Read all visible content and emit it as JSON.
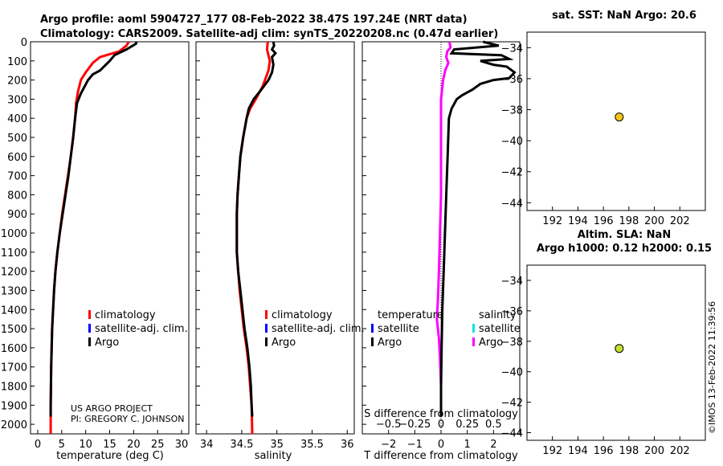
{
  "title_line1": "Argo profile: aoml 5904727_177 08-Feb-2022 38.47S 197.24E (NRT data)",
  "title_line2": "Climatology: CARS2009. Satellite-adj clim: synTS_20220208.nc (0.47d earlier)",
  "map1_title": "sat. SST: NaN Argo: 20.6",
  "map2_title_line1": "Altim. SLA: NaN",
  "map2_title_line2": "Argo h1000: 0.12 h2000: 0.15",
  "credit_us": "US ARGO PROJECT",
  "credit_pi": "PI: GREGORY C. JOHNSON",
  "stamp": "©IMOS 13-Feb-2022 11:39:56",
  "colors": {
    "climatology": "#ff0000",
    "satellite": "#0000ff",
    "argo": "#000000",
    "sat_diff": "#00e5e5",
    "argo_s_diff": "#ff00ff",
    "marker1": "#f5c518",
    "marker2": "#c8e030"
  },
  "chart_data": [
    {
      "type": "line",
      "name": "temperature",
      "xlabel": "temperature (deg C)",
      "ylabel": "",
      "xlim": [
        -1.5,
        31.5
      ],
      "ylim": [
        0,
        2050
      ],
      "x_ticks": [
        0,
        5,
        10,
        15,
        20,
        25,
        30
      ],
      "y_ticks": [
        0,
        100,
        200,
        300,
        400,
        500,
        600,
        700,
        800,
        900,
        1000,
        1100,
        1200,
        1300,
        1400,
        1500,
        1600,
        1700,
        1800,
        1900,
        2000
      ],
      "legend": [
        "climatology",
        "satellite-adj. clim.",
        "Argo"
      ],
      "series": [
        {
          "name": "climatology",
          "points": [
            [
              19,
              0
            ],
            [
              18.5,
              20
            ],
            [
              17,
              50
            ],
            [
              13,
              80
            ],
            [
              11.5,
              110
            ],
            [
              10,
              160
            ],
            [
              9,
              200
            ],
            [
              8.4,
              260
            ],
            [
              8,
              320
            ],
            [
              7.8,
              400
            ],
            [
              7.4,
              500
            ],
            [
              6.9,
              600
            ],
            [
              6.3,
              700
            ],
            [
              5.7,
              800
            ],
            [
              5.1,
              900
            ],
            [
              4.6,
              1000
            ],
            [
              4.1,
              1100
            ],
            [
              3.7,
              1200
            ],
            [
              3.4,
              1300
            ],
            [
              3.2,
              1400
            ],
            [
              3,
              1500
            ],
            [
              2.9,
              1600
            ],
            [
              2.8,
              1700
            ],
            [
              2.75,
              1800
            ],
            [
              2.7,
              1900
            ],
            [
              2.7,
              2050
            ]
          ]
        },
        {
          "name": "Argo",
          "points": [
            [
              20.6,
              0
            ],
            [
              20.5,
              10
            ],
            [
              18.5,
              40
            ],
            [
              16,
              70
            ],
            [
              15,
              100
            ],
            [
              13,
              150
            ],
            [
              11.5,
              170
            ],
            [
              10.5,
              200
            ],
            [
              9,
              270
            ],
            [
              8.2,
              320
            ],
            [
              7.8,
              400
            ],
            [
              7.4,
              500
            ],
            [
              6.9,
              600
            ],
            [
              6.4,
              700
            ],
            [
              5.8,
              800
            ],
            [
              5.2,
              900
            ],
            [
              4.6,
              1000
            ],
            [
              4.1,
              1100
            ],
            [
              3.7,
              1200
            ],
            [
              3.4,
              1300
            ],
            [
              3.2,
              1400
            ],
            [
              3,
              1500
            ],
            [
              2.9,
              1600
            ],
            [
              2.8,
              1700
            ],
            [
              2.75,
              1800
            ],
            [
              2.7,
              1900
            ],
            [
              2.7,
              1960
            ]
          ]
        }
      ]
    },
    {
      "type": "line",
      "name": "salinity",
      "xlabel": "salinity",
      "ylabel": "",
      "xlim": [
        33.85,
        36.1
      ],
      "ylim": [
        0,
        2050
      ],
      "x_ticks": [
        34,
        34.5,
        35,
        35.5,
        36
      ],
      "legend": [
        "climatology",
        "satellite-adj. clim.",
        "Argo"
      ],
      "series": [
        {
          "name": "climatology",
          "points": [
            [
              34.87,
              0
            ],
            [
              34.86,
              40
            ],
            [
              34.9,
              100
            ],
            [
              34.88,
              150
            ],
            [
              34.8,
              230
            ],
            [
              34.7,
              300
            ],
            [
              34.62,
              350
            ],
            [
              34.57,
              400
            ],
            [
              34.52,
              500
            ],
            [
              34.48,
              600
            ],
            [
              34.46,
              700
            ],
            [
              34.44,
              800
            ],
            [
              34.43,
              900
            ],
            [
              34.43,
              1000
            ],
            [
              34.43,
              1100
            ],
            [
              34.45,
              1200
            ],
            [
              34.47,
              1300
            ],
            [
              34.5,
              1400
            ],
            [
              34.53,
              1500
            ],
            [
              34.57,
              1600
            ],
            [
              34.6,
              1700
            ],
            [
              34.62,
              1800
            ],
            [
              34.64,
              1900
            ],
            [
              34.65,
              2050
            ]
          ]
        },
        {
          "name": "Argo",
          "points": [
            [
              34.95,
              0
            ],
            [
              34.96,
              20
            ],
            [
              34.93,
              40
            ],
            [
              34.98,
              60
            ],
            [
              34.93,
              80
            ],
            [
              34.95,
              120
            ],
            [
              34.93,
              160
            ],
            [
              34.88,
              200
            ],
            [
              34.78,
              250
            ],
            [
              34.67,
              300
            ],
            [
              34.6,
              350
            ],
            [
              34.57,
              400
            ],
            [
              34.52,
              500
            ],
            [
              34.48,
              600
            ],
            [
              34.46,
              700
            ],
            [
              34.44,
              800
            ],
            [
              34.43,
              900
            ],
            [
              34.43,
              1000
            ],
            [
              34.43,
              1100
            ],
            [
              34.45,
              1200
            ],
            [
              34.48,
              1300
            ],
            [
              34.51,
              1400
            ],
            [
              34.54,
              1500
            ],
            [
              34.58,
              1600
            ],
            [
              34.61,
              1700
            ],
            [
              34.63,
              1800
            ],
            [
              34.64,
              1900
            ],
            [
              34.65,
              1960
            ]
          ]
        }
      ]
    },
    {
      "type": "line",
      "name": "difference",
      "xlabel": "T difference from climatology",
      "x2label": "S difference from climatology",
      "xlim": [
        -3,
        3
      ],
      "ylim": [
        0,
        2050
      ],
      "x_ticks": [
        -2,
        -1,
        0,
        1,
        2
      ],
      "x2_ticks": [
        -0.5,
        -0.25,
        0,
        0.25,
        0.5
      ],
      "legend_t_header": "temperature",
      "legend_s_header": "salinity",
      "legend_t": [
        "satellite",
        "Argo"
      ],
      "legend_s": [
        "satellite",
        "Argo"
      ],
      "series": [
        {
          "name": "T diff Argo",
          "points": [
            [
              1.6,
              0
            ],
            [
              2.2,
              20
            ],
            [
              0.5,
              40
            ],
            [
              0.4,
              60
            ],
            [
              2.3,
              70
            ],
            [
              2.6,
              90
            ],
            [
              1.5,
              100
            ],
            [
              2.0,
              120
            ],
            [
              2.5,
              130
            ],
            [
              2.8,
              160
            ],
            [
              2.6,
              190
            ],
            [
              2.0,
              200
            ],
            [
              1.5,
              220
            ],
            [
              1.2,
              250
            ],
            [
              0.8,
              280
            ],
            [
              0.6,
              300
            ],
            [
              0.4,
              350
            ],
            [
              0.3,
              400
            ],
            [
              0.25,
              600
            ],
            [
              0.2,
              800
            ],
            [
              0.15,
              1000
            ],
            [
              0.1,
              1200
            ],
            [
              0.05,
              1400
            ],
            [
              0.02,
              1600
            ],
            [
              0,
              1800
            ],
            [
              0,
              1960
            ]
          ]
        },
        {
          "name": "S diff Argo",
          "points": [
            [
              0.08,
              0
            ],
            [
              0.09,
              30
            ],
            [
              0.06,
              50
            ],
            [
              0.05,
              80
            ],
            [
              0.07,
              110
            ],
            [
              0.04,
              150
            ],
            [
              0.02,
              200
            ],
            [
              0,
              300
            ],
            [
              0,
              500
            ],
            [
              0,
              800
            ],
            [
              -0.01,
              1000
            ],
            [
              -0.02,
              1200
            ],
            [
              -0.03,
              1350
            ],
            [
              -0.04,
              1450
            ],
            [
              -0.02,
              1550
            ],
            [
              -0.01,
              1650
            ],
            [
              0,
              1800
            ],
            [
              0,
              1960
            ]
          ]
        }
      ]
    },
    {
      "type": "scatter",
      "name": "map-sst",
      "xlim": [
        190,
        204
      ],
      "ylim": [
        -44.5,
        -33
      ],
      "x_ticks": [
        192,
        194,
        196,
        198,
        200,
        202
      ],
      "y_ticks": [
        -34,
        -36,
        -38,
        -40,
        -42,
        -44
      ],
      "points": [
        [
          197.24,
          -38.47
        ]
      ]
    },
    {
      "type": "scatter",
      "name": "map-sla",
      "xlim": [
        190,
        204
      ],
      "ylim": [
        -44.5,
        -33
      ],
      "x_ticks": [
        192,
        194,
        196,
        198,
        200,
        202
      ],
      "y_ticks": [
        -34,
        -36,
        -38,
        -40,
        -42,
        -44
      ],
      "points": [
        [
          197.24,
          -38.47
        ]
      ]
    }
  ]
}
